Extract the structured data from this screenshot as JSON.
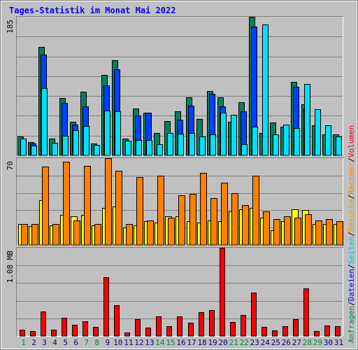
{
  "title": "Tages-Statistik im Monat Mai 2022",
  "right_legend": [
    {
      "label": "Anfragen",
      "color": "#00805c"
    },
    {
      "label": "/",
      "color": "#000000"
    },
    {
      "label": "Dateien",
      "color": "#0000ff"
    },
    {
      "label": "/",
      "color": "#000000"
    },
    {
      "label": "Seiten",
      "color": "#00c0ff"
    },
    {
      "label": "/",
      "color": "#000000"
    },
    {
      "label": "Besuche",
      "color": "#e0a000"
    },
    {
      "label": "/",
      "color": "#000000"
    },
    {
      "label": "Rechner",
      "color": "#ff8000"
    },
    {
      "label": "/",
      "color": "#000000"
    },
    {
      "label": "Volumen",
      "color": "#ff0000"
    }
  ],
  "colors": {
    "background": "#c0c0c0",
    "frame": "#808080",
    "grid": "#808080",
    "title": "#0000ff",
    "hits": "#00805c",
    "files": "#0040ff",
    "pages": "#00e0ff",
    "visits": "#ffff00",
    "sites": "#ff8000",
    "kbytes": "#ff0000",
    "weekday_label": "#000080",
    "weekend_label": "#008040"
  },
  "chart_data": [
    {
      "type": "bar",
      "name": "top",
      "ymax_label": "185",
      "ylim": [
        0,
        185
      ],
      "categories": [
        "1",
        "2",
        "3",
        "4",
        "5",
        "6",
        "7",
        "8",
        "9",
        "10",
        "11",
        "12",
        "13",
        "14",
        "15",
        "16",
        "17",
        "18",
        "19",
        "20",
        "21",
        "22",
        "23",
        "24",
        "25",
        "26",
        "27",
        "28",
        "29",
        "30",
        "31"
      ],
      "weekend_days": [
        "1",
        "7",
        "8",
        "14",
        "15",
        "21",
        "22",
        "28",
        "29"
      ],
      "series": [
        {
          "name": "Anfragen",
          "values": [
            25,
            18,
            145,
            22,
            77,
            45,
            85,
            16,
            107,
            127,
            22,
            63,
            57,
            30,
            46,
            59,
            78,
            49,
            86,
            78,
            45,
            71,
            185,
            30,
            44,
            38,
            98,
            68,
            40,
            28,
            28
          ]
        },
        {
          "name": "Dateien",
          "values": [
            0,
            16,
            135,
            0,
            70,
            41,
            65,
            0,
            93,
            115,
            0,
            53,
            57,
            0,
            0,
            48,
            66,
            0,
            82,
            65,
            0,
            59,
            172,
            0,
            0,
            0,
            92,
            63,
            0,
            0,
            0
          ]
        },
        {
          "name": "Seiten",
          "values": [
            22,
            13,
            90,
            17,
            26,
            34,
            39,
            14,
            60,
            59,
            20,
            21,
            21,
            15,
            30,
            29,
            30,
            25,
            28,
            57,
            54,
            15,
            38,
            175,
            28,
            41,
            36,
            95,
            62,
            40,
            25
          ]
        }
      ]
    },
    {
      "type": "bar",
      "name": "middle",
      "ymax_label": "70",
      "ylim": [
        0,
        70
      ],
      "categories": [
        "1",
        "2",
        "3",
        "4",
        "5",
        "6",
        "7",
        "8",
        "9",
        "10",
        "11",
        "12",
        "13",
        "14",
        "15",
        "16",
        "17",
        "18",
        "19",
        "20",
        "21",
        "22",
        "23",
        "24",
        "25",
        "26",
        "27",
        "28",
        "29",
        "30",
        "31"
      ],
      "series": [
        {
          "name": "Besuche",
          "values": [
            17,
            15,
            36,
            16,
            24,
            23,
            24,
            16,
            30,
            31,
            14,
            16,
            19,
            18,
            23,
            23,
            19,
            18,
            20,
            19,
            27,
            29,
            30,
            22,
            12,
            19,
            29,
            28,
            17,
            17,
            17
          ]
        },
        {
          "name": "Rechner",
          "values": [
            17,
            17,
            63,
            17,
            67,
            20,
            64,
            17,
            70,
            60,
            17,
            55,
            20,
            56,
            22,
            40,
            41,
            58,
            38,
            50,
            42,
            32,
            56,
            27,
            21,
            23,
            22,
            25,
            20,
            21,
            19
          ]
        }
      ]
    },
    {
      "type": "bar",
      "name": "bottom",
      "ymax_label": "1.08 MB",
      "ylim": [
        0,
        1.08
      ],
      "categories": [
        "1",
        "2",
        "3",
        "4",
        "5",
        "6",
        "7",
        "8",
        "9",
        "10",
        "11",
        "12",
        "13",
        "14",
        "15",
        "16",
        "17",
        "18",
        "19",
        "20",
        "21",
        "22",
        "23",
        "24",
        "25",
        "26",
        "27",
        "28",
        "29",
        "30",
        "31"
      ],
      "series": [
        {
          "name": "Volumen",
          "values": [
            0.08,
            0.06,
            0.3,
            0.08,
            0.22,
            0.14,
            0.18,
            0.11,
            0.72,
            0.38,
            0.04,
            0.21,
            0.1,
            0.24,
            0.12,
            0.24,
            0.16,
            0.29,
            0.32,
            1.08,
            0.17,
            0.26,
            0.53,
            0.11,
            0.07,
            0.12,
            0.21,
            0.58,
            0.06,
            0.13,
            0.12
          ]
        }
      ]
    }
  ]
}
